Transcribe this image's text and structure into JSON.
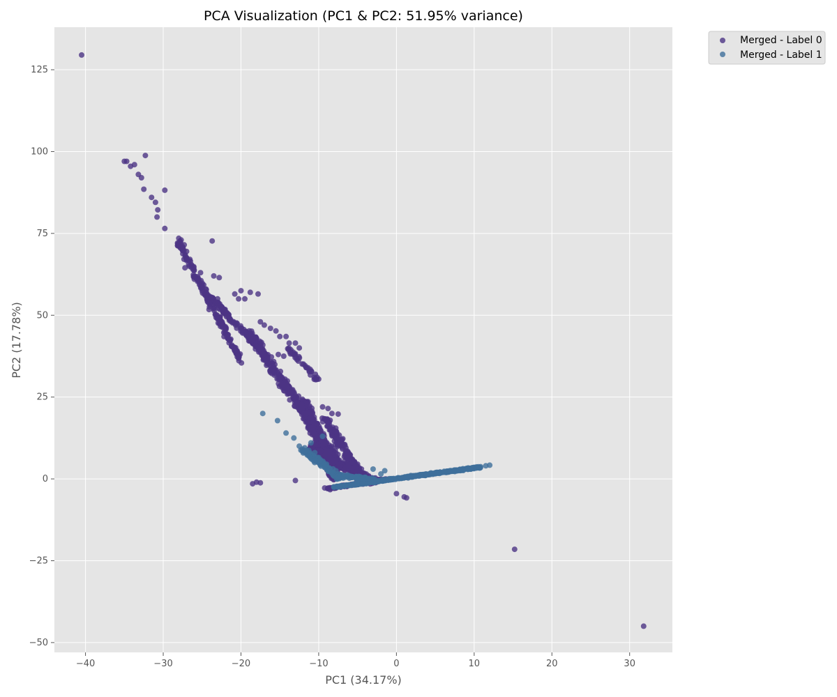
{
  "chart_data": {
    "type": "scatter",
    "title": "PCA Visualization (PC1 & PC2: 51.95% variance)",
    "xlabel": "PC1 (34.17%)",
    "ylabel": "PC2 (17.78%)",
    "xlim": [
      -44,
      35.5
    ],
    "ylim": [
      -53,
      138
    ],
    "xticks": [
      -40,
      -30,
      -20,
      -10,
      0,
      10,
      20,
      30
    ],
    "yticks": [
      -50,
      -25,
      0,
      25,
      50,
      75,
      100,
      125
    ],
    "xtick_labels": [
      "−40",
      "−30",
      "−20",
      "−10",
      "0",
      "10",
      "20",
      "30"
    ],
    "ytick_labels": [
      "−50",
      "−25",
      "0",
      "25",
      "50",
      "75",
      "100",
      "125"
    ],
    "grid": true,
    "background": "#e5e5e5",
    "legend_placement": "outside-top-right",
    "series": [
      {
        "name": "Merged - Label 0",
        "color": "#4c3584",
        "points": [
          [
            -40.5,
            129.5
          ],
          [
            -35,
            97
          ],
          [
            -34.7,
            97
          ],
          [
            -34.2,
            95.5
          ],
          [
            -33.7,
            96
          ],
          [
            -33.2,
            93
          ],
          [
            -32.8,
            92
          ],
          [
            -32.3,
            98.8
          ],
          [
            -32.5,
            88.5
          ],
          [
            -31.5,
            86
          ],
          [
            -31,
            84.5
          ],
          [
            -30.7,
            82.2
          ],
          [
            -30.8,
            80
          ],
          [
            -29.8,
            88.2
          ],
          [
            -29.8,
            76.5
          ],
          [
            -28,
            73.5
          ],
          [
            -27.7,
            73
          ],
          [
            -27.3,
            71.5
          ],
          [
            -27,
            69.5
          ],
          [
            -27.2,
            64.5
          ],
          [
            -26.5,
            66.5
          ],
          [
            -26,
            61
          ],
          [
            -25.2,
            63
          ],
          [
            -24.5,
            58
          ],
          [
            -23.7,
            72.7
          ],
          [
            -23.5,
            62
          ],
          [
            -22.8,
            61.5
          ],
          [
            -23,
            55
          ],
          [
            -22.5,
            52
          ],
          [
            -21.5,
            49
          ],
          [
            -20.8,
            56.5
          ],
          [
            -20.3,
            55
          ],
          [
            -20,
            57.5
          ],
          [
            -19.5,
            55
          ],
          [
            -18.8,
            57
          ],
          [
            -17.8,
            56.5
          ],
          [
            -17.5,
            48
          ],
          [
            -17,
            47
          ],
          [
            -16.2,
            46
          ],
          [
            -15.5,
            45.2
          ],
          [
            -15,
            43.5
          ],
          [
            -14.2,
            43.5
          ],
          [
            -13.8,
            41.5
          ],
          [
            -13,
            41.5
          ],
          [
            -12.5,
            40
          ],
          [
            -14.5,
            37.5
          ],
          [
            -15.2,
            38
          ],
          [
            -10,
            30.5
          ],
          [
            -9.5,
            22
          ],
          [
            -8.8,
            21.5
          ],
          [
            -8.3,
            20
          ],
          [
            -7.8,
            15.5
          ],
          [
            -7.5,
            19.8
          ],
          [
            -7,
            12
          ],
          [
            -6.5,
            9.5
          ],
          [
            -6,
            7.5
          ],
          [
            -5.5,
            5
          ],
          [
            -5,
            4.5
          ],
          [
            -4.5,
            3
          ],
          [
            -18.5,
            -1.5
          ],
          [
            -18,
            -1
          ],
          [
            -17.5,
            -1.2
          ],
          [
            -13,
            -0.5
          ],
          [
            0,
            -4.5
          ],
          [
            1,
            -5.5
          ],
          [
            1.3,
            -5.8
          ],
          [
            15.2,
            -21.5
          ],
          [
            31.8,
            -45
          ]
        ],
        "branches": [
          {
            "from": [
              -28,
              72
            ],
            "to": [
              -20,
              36
            ],
            "count": 180,
            "jitter": [
              0.5,
              1.4
            ]
          },
          {
            "from": [
              -24,
              56
            ],
            "to": [
              -17,
              38
            ],
            "count": 120,
            "jitter": [
              0.5,
              1.2
            ]
          },
          {
            "from": [
              -19,
              45
            ],
            "to": [
              -7,
              3
            ],
            "count": 420,
            "jitter": [
              0.9,
              1.6
            ]
          },
          {
            "from": [
              -14,
              40
            ],
            "to": [
              -10,
              30
            ],
            "count": 40,
            "jitter": [
              0.5,
              1.0
            ]
          },
          {
            "from": [
              -12,
              24
            ],
            "to": [
              -8,
              0
            ],
            "count": 320,
            "jitter": [
              1.0,
              1.2
            ]
          },
          {
            "from": [
              -11,
              10
            ],
            "to": [
              -3,
              -1
            ],
            "count": 260,
            "jitter": [
              1.3,
              1.5
            ]
          },
          {
            "from": [
              -9,
              18
            ],
            "to": [
              -5,
              2
            ],
            "count": 140,
            "jitter": [
              0.8,
              1.2
            ]
          },
          {
            "from": [
              -9,
              -3
            ],
            "to": [
              -1,
              0
            ],
            "count": 100,
            "jitter": [
              0.6,
              0.5
            ]
          }
        ]
      },
      {
        "name": "Merged - Label 1",
        "color": "#3f6f9b",
        "points": [
          [
            -17.2,
            20
          ],
          [
            -15.3,
            17.8
          ],
          [
            -14.2,
            14
          ],
          [
            -13.2,
            12.5
          ],
          [
            -12.5,
            10
          ],
          [
            -11.8,
            9.5
          ],
          [
            -11,
            11
          ],
          [
            -10.5,
            8
          ],
          [
            -10,
            6.5
          ],
          [
            -9.5,
            13
          ],
          [
            -9,
            4.5
          ],
          [
            -8.5,
            2.5
          ],
          [
            -3,
            3
          ],
          [
            -1.5,
            2.5
          ],
          [
            -2,
            1.5
          ],
          [
            12,
            4.2
          ],
          [
            11.5,
            4
          ]
        ],
        "branches": [
          {
            "from": [
              -8,
              -2.5
            ],
            "to": [
              10.8,
              3.6
            ],
            "count": 420,
            "jitter": [
              0.3,
              0.35
            ]
          },
          {
            "from": [
              -12,
              9
            ],
            "to": [
              -7,
              0
            ],
            "count": 110,
            "jitter": [
              0.8,
              1.1
            ]
          },
          {
            "from": [
              -8,
              1
            ],
            "to": [
              -3,
              0
            ],
            "count": 80,
            "jitter": [
              0.7,
              0.6
            ]
          }
        ]
      }
    ]
  }
}
